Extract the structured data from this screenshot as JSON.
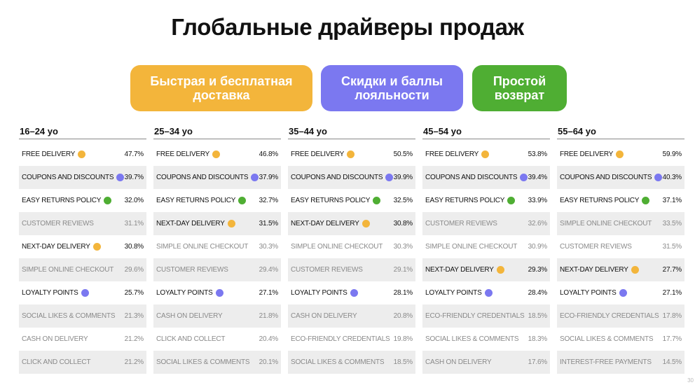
{
  "title": "Глобальные драйверы продаж",
  "colors": {
    "delivery": "#f3b53b",
    "loyalty": "#7b78f0",
    "returns": "#4fae33"
  },
  "pills": [
    {
      "label": "Быстрая и бесплатная\nдоставка",
      "color": "#f3b53b"
    },
    {
      "label": "Скидки и баллы\nлояльности",
      "color": "#7b78f0"
    },
    {
      "label": "Простой\nвозврат",
      "color": "#4fae33"
    }
  ],
  "columns": [
    {
      "age": "16–24 yo",
      "rows": [
        {
          "label": "FREE DELIVERY",
          "value": "47.7%",
          "dot": "delivery"
        },
        {
          "label": "COUPONS AND DISCOUNTS",
          "value": "39.7%",
          "dot": "loyalty"
        },
        {
          "label": "EASY RETURNS POLICY",
          "value": "32.0%",
          "dot": "returns"
        },
        {
          "label": "CUSTOMER REVIEWS",
          "value": "31.1%"
        },
        {
          "label": "NEXT-DAY DELIVERY",
          "value": "30.8%",
          "dot": "delivery"
        },
        {
          "label": "SIMPLE ONLINE CHECKOUT",
          "value": "29.6%"
        },
        {
          "label": "LOYALTY POINTS",
          "value": "25.7%",
          "dot": "loyalty"
        },
        {
          "label": "SOCIAL LIKES & COMMENTS",
          "value": "21.3%"
        },
        {
          "label": "CASH ON DELIVERY",
          "value": "21.2%"
        },
        {
          "label": "CLICK AND COLLECT",
          "value": "21.2%"
        }
      ]
    },
    {
      "age": "25–34 yo",
      "rows": [
        {
          "label": "FREE DELIVERY",
          "value": "46.8%",
          "dot": "delivery"
        },
        {
          "label": "COUPONS AND DISCOUNTS",
          "value": "37.9%",
          "dot": "loyalty"
        },
        {
          "label": "EASY RETURNS POLICY",
          "value": "32.7%",
          "dot": "returns"
        },
        {
          "label": "NEXT-DAY DELIVERY",
          "value": "31.5%",
          "dot": "delivery"
        },
        {
          "label": "SIMPLE ONLINE CHECKOUT",
          "value": "30.3%"
        },
        {
          "label": "CUSTOMER REVIEWS",
          "value": "29.4%"
        },
        {
          "label": "LOYALTY POINTS",
          "value": "27.1%",
          "dot": "loyalty"
        },
        {
          "label": "CASH ON DELIVERY",
          "value": "21.8%"
        },
        {
          "label": "CLICK AND COLLECT",
          "value": "20.4%"
        },
        {
          "label": "SOCIAL LIKES & COMMENTS",
          "value": "20.1%"
        }
      ]
    },
    {
      "age": "35–44 yo",
      "rows": [
        {
          "label": "FREE DELIVERY",
          "value": "50.5%",
          "dot": "delivery"
        },
        {
          "label": "COUPONS AND DISCOUNTS",
          "value": "39.9%",
          "dot": "loyalty"
        },
        {
          "label": "EASY RETURNS POLICY",
          "value": "32.5%",
          "dot": "returns"
        },
        {
          "label": "NEXT-DAY DELIVERY",
          "value": "30.8%",
          "dot": "delivery"
        },
        {
          "label": "SIMPLE ONLINE CHECKOUT",
          "value": "30.3%"
        },
        {
          "label": "CUSTOMER REVIEWS",
          "value": "29.1%"
        },
        {
          "label": "LOYALTY POINTS",
          "value": "28.1%",
          "dot": "loyalty"
        },
        {
          "label": "CASH ON DELIVERY",
          "value": "20.8%"
        },
        {
          "label": "ECO-FRIENDLY CREDENTIALS",
          "value": "19.8%"
        },
        {
          "label": "SOCIAL LIKES & COMMENTS",
          "value": "18.5%"
        }
      ]
    },
    {
      "age": "45–54 yo",
      "rows": [
        {
          "label": "FREE DELIVERY",
          "value": "53.8%",
          "dot": "delivery"
        },
        {
          "label": "COUPONS AND DISCOUNTS",
          "value": "39.4%",
          "dot": "loyalty"
        },
        {
          "label": "EASY RETURNS POLICY",
          "value": "33.9%",
          "dot": "returns"
        },
        {
          "label": "CUSTOMER REVIEWS",
          "value": "32.6%"
        },
        {
          "label": "SIMPLE ONLINE CHECKOUT",
          "value": "30.9%"
        },
        {
          "label": "NEXT-DAY DELIVERY",
          "value": "29.3%",
          "dot": "delivery"
        },
        {
          "label": "LOYALTY POINTS",
          "value": "28.4%",
          "dot": "loyalty"
        },
        {
          "label": "ECO-FRIENDLY CREDENTIALS",
          "value": "18.5%"
        },
        {
          "label": "SOCIAL LIKES & COMMENTS",
          "value": "18.3%"
        },
        {
          "label": "CASH ON DELIVERY",
          "value": "17.6%"
        }
      ]
    },
    {
      "age": "55–64 yo",
      "rows": [
        {
          "label": "FREE DELIVERY",
          "value": "59.9%",
          "dot": "delivery"
        },
        {
          "label": "COUPONS AND DISCOUNTS",
          "value": "40.3%",
          "dot": "loyalty"
        },
        {
          "label": "EASY RETURNS POLICY",
          "value": "37.1%",
          "dot": "returns"
        },
        {
          "label": "SIMPLE ONLINE CHECKOUT",
          "value": "33.5%"
        },
        {
          "label": "CUSTOMER REVIEWS",
          "value": "31.5%"
        },
        {
          "label": "NEXT-DAY DELIVERY",
          "value": "27.7%",
          "dot": "delivery"
        },
        {
          "label": "LOYALTY POINTS",
          "value": "27.1%",
          "dot": "loyalty"
        },
        {
          "label": "ECO-FRIENDLY CREDENTIALS",
          "value": "17.8%"
        },
        {
          "label": "SOCIAL LIKES & COMMENTS",
          "value": "17.7%"
        },
        {
          "label": "INTEREST-FREE PAYMENTS",
          "value": "14.5%"
        }
      ]
    }
  ],
  "page_number": "30"
}
